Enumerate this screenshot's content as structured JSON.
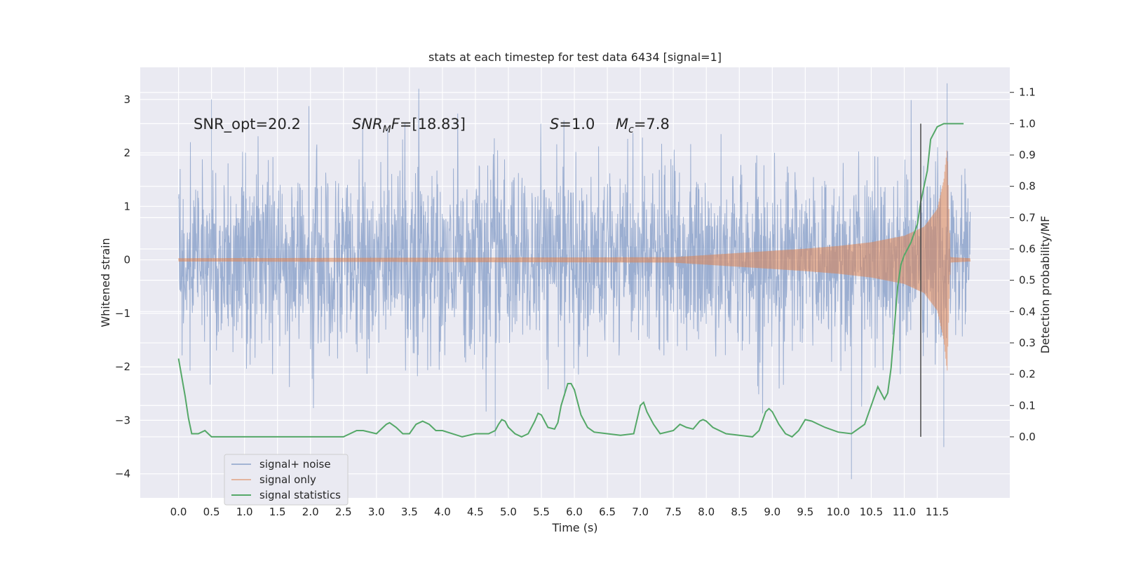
{
  "chart_data": {
    "type": "line",
    "title": "stats at each timestep for test data 6434 [signal=1]",
    "xlabel": "Time (s)",
    "ylabel_left": "Whitened strain",
    "ylabel_right": "Detection probability/MF",
    "xlim": [
      -0.58,
      12.6
    ],
    "ylim_left": [
      -4.45,
      3.6
    ],
    "ylim_right": [
      -0.195,
      1.18
    ],
    "x_ticks": [
      0.0,
      0.5,
      1.0,
      1.5,
      2.0,
      2.5,
      3.0,
      3.5,
      4.0,
      4.5,
      5.0,
      5.5,
      6.0,
      6.5,
      7.0,
      7.5,
      8.0,
      8.5,
      9.0,
      9.5,
      10.0,
      10.5,
      11.0,
      11.5
    ],
    "x_tick_labels": [
      "0.0",
      "0.5",
      "1.0",
      "1.5",
      "2.0",
      "2.5",
      "3.0",
      "3.5",
      "4.0",
      "4.5",
      "5.0",
      "5.5",
      "6.0",
      "6.5",
      "7.0",
      "7.5",
      "8.0",
      "8.5",
      "9.0",
      "9.5",
      "10.0",
      "10.5",
      "11.0",
      "11.5"
    ],
    "y_left_ticks": [
      3,
      2,
      1,
      0,
      -1,
      -2,
      -3,
      -4
    ],
    "y_left_tick_labels": [
      "3",
      "2",
      "1",
      "0",
      "−1",
      "−2",
      "−3",
      "−4"
    ],
    "y_right_ticks": [
      1.1,
      1.0,
      0.9,
      0.8,
      0.7,
      0.6,
      0.5,
      0.4,
      0.3,
      0.2,
      0.1,
      0.0
    ],
    "y_right_tick_labels": [
      "1.1",
      "1.0",
      "0.9",
      "0.8",
      "0.7",
      "0.6",
      "0.5",
      "0.4",
      "0.3",
      "0.2",
      "0.1",
      "0.0"
    ],
    "annotations": {
      "snr_opt": "SNR_opt=20.2",
      "snr_mf_sym": "SNR",
      "snr_mf_sub": "M",
      "snr_mf_tail": "F",
      "snr_mf_value": "=[18.83]",
      "s_sym": "S",
      "s_value": "=1.0",
      "mc_sym": "M",
      "mc_sub": "c",
      "mc_value": "=7.8"
    },
    "annotation_positions_data": [
      {
        "x": 0.2,
        "y_left": 2.45
      },
      {
        "x": 2.6,
        "y_left": 2.45
      },
      {
        "x": 5.6,
        "y_left": 2.45
      },
      {
        "x": 6.6,
        "y_left": 2.45
      }
    ],
    "vertical_marker_x": 11.25,
    "vertical_marker_range_right": [
      0.0,
      1.0
    ],
    "legend": {
      "placement": "lower-left",
      "entries": [
        "signal+ noise",
        "signal only",
        "signal statistics"
      ]
    },
    "colors": {
      "background": "#eaeaf2",
      "grid": "#ffffff",
      "signal_noise": "#4c72b0",
      "signal_only": "#dd8452",
      "statistics": "#55a868",
      "marker": "#4a4a4a"
    },
    "signal_noise_series": {
      "name": "signal+ noise",
      "time_range": [
        0.0,
        12.0
      ],
      "approx_envelope": [
        -1.8,
        2.2
      ],
      "extremes": [
        {
          "x": 0.5,
          "y": 3.0
        },
        {
          "x": 4.8,
          "y": -3.3
        },
        {
          "x": 10.2,
          "y": -4.1
        },
        {
          "x": 11.65,
          "y": 3.3
        },
        {
          "x": 11.6,
          "y": -3.5
        }
      ]
    },
    "signal_only_series": {
      "name": "signal only",
      "chirp_envelope": {
        "x": [
          0.0,
          7.5,
          8.0,
          8.5,
          9.0,
          9.5,
          10.0,
          10.5,
          11.0,
          11.3,
          11.5,
          11.6,
          11.65,
          11.7,
          12.0
        ],
        "amp": [
          0.03,
          0.05,
          0.09,
          0.13,
          0.17,
          0.21,
          0.26,
          0.33,
          0.45,
          0.62,
          0.95,
          1.5,
          2.1,
          0.05,
          0.03
        ]
      }
    },
    "statistics_series": {
      "name": "signal statistics",
      "x": [
        0.0,
        0.1,
        0.15,
        0.2,
        0.3,
        0.4,
        0.5,
        0.6,
        0.8,
        1.0,
        1.2,
        1.5,
        2.0,
        2.5,
        2.7,
        2.8,
        3.0,
        3.1,
        3.15,
        3.2,
        3.3,
        3.4,
        3.5,
        3.6,
        3.7,
        3.8,
        3.9,
        4.0,
        4.3,
        4.5,
        4.7,
        4.8,
        4.85,
        4.9,
        4.95,
        5.0,
        5.1,
        5.2,
        5.3,
        5.4,
        5.45,
        5.5,
        5.55,
        5.6,
        5.7,
        5.75,
        5.8,
        5.9,
        5.95,
        6.0,
        6.1,
        6.2,
        6.3,
        6.5,
        6.7,
        6.9,
        7.0,
        7.05,
        7.1,
        7.2,
        7.3,
        7.5,
        7.6,
        7.7,
        7.8,
        7.9,
        7.95,
        8.0,
        8.1,
        8.3,
        8.5,
        8.7,
        8.8,
        8.9,
        8.95,
        9.0,
        9.1,
        9.2,
        9.3,
        9.4,
        9.5,
        9.6,
        9.7,
        9.8,
        10.0,
        10.2,
        10.4,
        10.5,
        10.6,
        10.65,
        10.7,
        10.75,
        10.8,
        10.85,
        10.9,
        10.95,
        11.0,
        11.1,
        11.2,
        11.25,
        11.3,
        11.35,
        11.4,
        11.5,
        11.6,
        11.8,
        11.9
      ],
      "y": [
        0.25,
        0.13,
        0.06,
        0.01,
        0.01,
        0.02,
        0.0,
        0.0,
        0.0,
        0.0,
        0.0,
        0.0,
        0.0,
        0.0,
        0.02,
        0.02,
        0.01,
        0.03,
        0.04,
        0.045,
        0.03,
        0.01,
        0.01,
        0.04,
        0.05,
        0.04,
        0.02,
        0.02,
        0.0,
        0.01,
        0.01,
        0.02,
        0.04,
        0.055,
        0.05,
        0.03,
        0.01,
        0.0,
        0.01,
        0.05,
        0.075,
        0.07,
        0.05,
        0.03,
        0.025,
        0.045,
        0.1,
        0.17,
        0.17,
        0.15,
        0.07,
        0.03,
        0.015,
        0.01,
        0.005,
        0.01,
        0.1,
        0.11,
        0.08,
        0.04,
        0.01,
        0.02,
        0.04,
        0.03,
        0.025,
        0.05,
        0.055,
        0.05,
        0.03,
        0.01,
        0.005,
        0.0,
        0.02,
        0.08,
        0.09,
        0.08,
        0.04,
        0.01,
        0.0,
        0.02,
        0.055,
        0.05,
        0.04,
        0.03,
        0.015,
        0.01,
        0.04,
        0.1,
        0.16,
        0.14,
        0.12,
        0.14,
        0.22,
        0.35,
        0.48,
        0.55,
        0.58,
        0.62,
        0.68,
        0.75,
        0.8,
        0.85,
        0.95,
        0.99,
        1.0,
        1.0,
        1.0
      ]
    }
  }
}
